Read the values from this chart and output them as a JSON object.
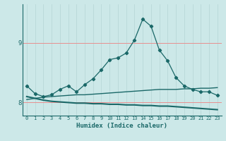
{
  "title": "",
  "xlabel": "Humidex (Indice chaleur)",
  "bg_color": "#cce8e8",
  "grid_color_h": "#e89090",
  "grid_color_v": "#b8d8d8",
  "line_color": "#1a6868",
  "x_values": [
    0,
    1,
    2,
    3,
    4,
    5,
    6,
    7,
    8,
    9,
    10,
    11,
    12,
    13,
    14,
    15,
    16,
    17,
    18,
    19,
    20,
    21,
    22,
    23
  ],
  "y_main": [
    8.28,
    8.15,
    8.1,
    8.13,
    8.22,
    8.28,
    8.18,
    8.3,
    8.4,
    8.55,
    8.72,
    8.75,
    8.83,
    9.05,
    9.4,
    9.28,
    8.88,
    8.7,
    8.42,
    8.28,
    8.22,
    8.18,
    8.18,
    8.12
  ],
  "y_line_decline": [
    8.1,
    8.07,
    8.04,
    8.02,
    8.01,
    8.0,
    7.99,
    7.99,
    7.98,
    7.98,
    7.97,
    7.97,
    7.96,
    7.96,
    7.95,
    7.95,
    7.94,
    7.94,
    7.93,
    7.92,
    7.91,
    7.9,
    7.89,
    7.88
  ],
  "y_line_rise": [
    8.05,
    8.07,
    8.09,
    8.1,
    8.11,
    8.12,
    8.13,
    8.13,
    8.14,
    8.15,
    8.16,
    8.17,
    8.18,
    8.19,
    8.2,
    8.21,
    8.22,
    8.22,
    8.22,
    8.23,
    8.23,
    8.24,
    8.24,
    8.25
  ],
  "ylim": [
    7.78,
    9.65
  ],
  "yticks": [
    8,
    9
  ],
  "xticks": [
    0,
    1,
    2,
    3,
    4,
    5,
    6,
    7,
    8,
    9,
    10,
    11,
    12,
    13,
    14,
    15,
    16,
    17,
    18,
    19,
    20,
    21,
    22,
    23
  ]
}
